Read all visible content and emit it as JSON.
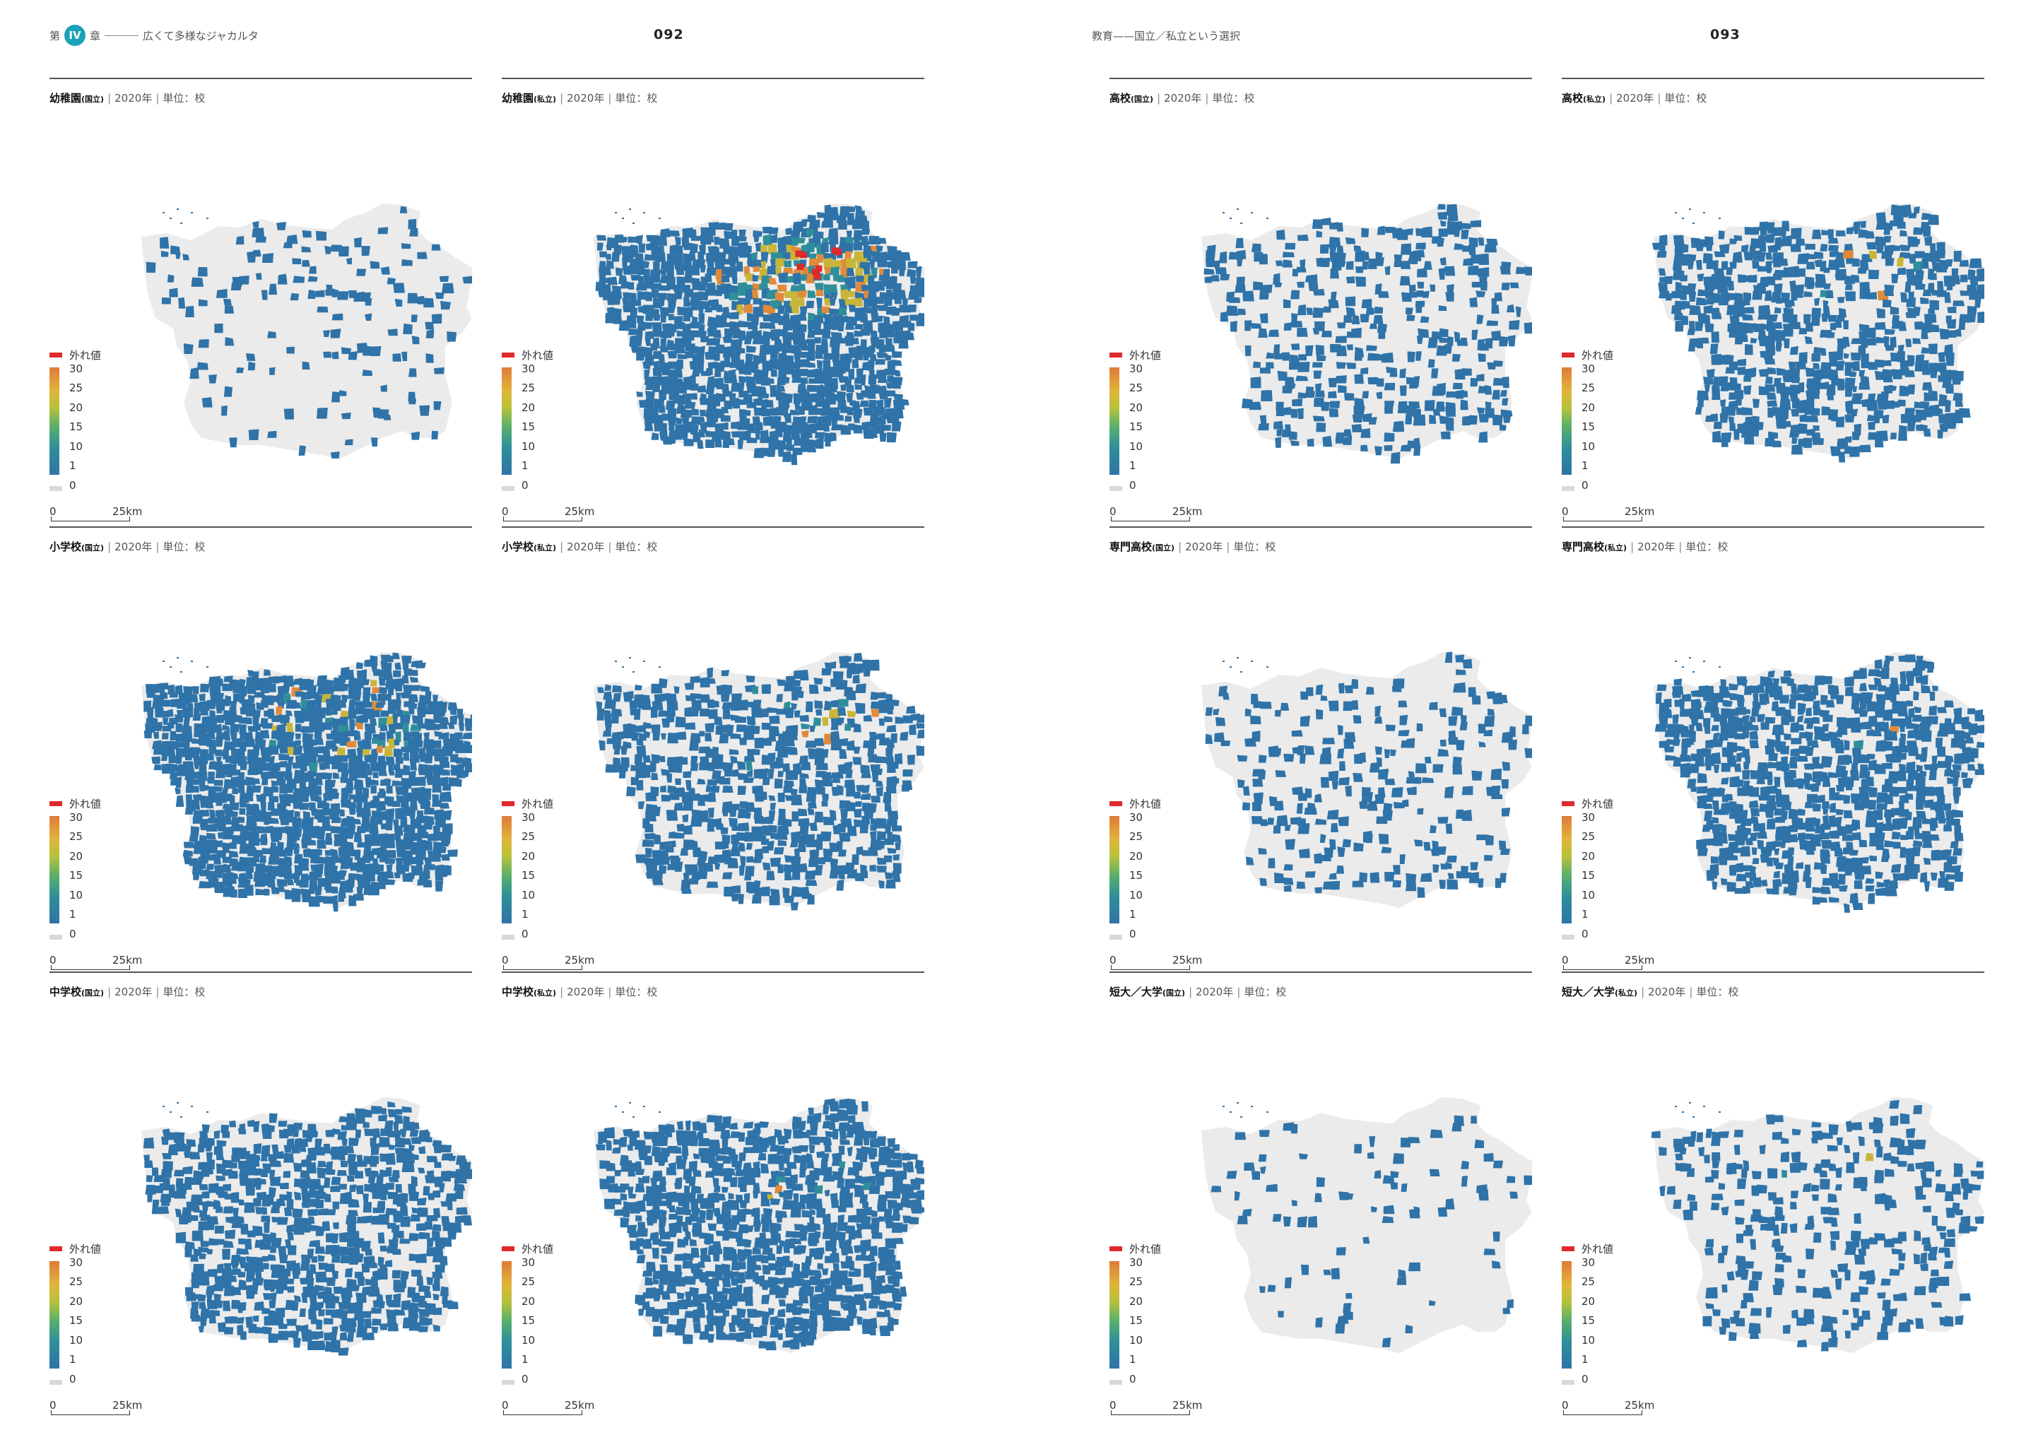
{
  "colors": {
    "land": "#ebebeb",
    "low": "#2f73a8",
    "mid": "#2e8f9a",
    "yellow": "#c9b53a",
    "orange": "#e08a3a",
    "outlier": "#e0292b",
    "zero": "#d9d9d9",
    "badge": "#1aa0b8"
  },
  "header_left": {
    "prefix": "第",
    "chapter": "IV",
    "suffix": "章",
    "title": "広くて多様なジャカルタ"
  },
  "header_right": {
    "title": "教育——国立／私立という選択"
  },
  "page_numbers": {
    "left": "092",
    "right": "093"
  },
  "legend": {
    "outlier_label": "外れ値",
    "ticks": [
      "30",
      "25",
      "20",
      "15",
      "10",
      "1",
      "0"
    ],
    "scale_zero": "0",
    "scale_label": "25km"
  },
  "maps": [
    {
      "title": "幼稚園",
      "type": "(国立)",
      "meta": "2020年",
      "unit": "単位：校",
      "intensity": 0.15,
      "hot": 0.0,
      "outliers": 0
    },
    {
      "title": "幼稚園",
      "type": "(私立)",
      "meta": "2020年",
      "unit": "単位：校",
      "intensity": 0.95,
      "hot": 0.35,
      "outliers": 8
    },
    {
      "title": "小学校",
      "type": "(国立)",
      "meta": "2020年",
      "unit": "単位：校",
      "intensity": 1.0,
      "hot": 0.08,
      "outliers": 0
    },
    {
      "title": "小学校",
      "type": "(私立)",
      "meta": "2020年",
      "unit": "単位：校",
      "intensity": 0.6,
      "hot": 0.08,
      "outliers": 0
    },
    {
      "title": "中学校",
      "type": "(国立)",
      "meta": "2020年",
      "unit": "単位：校",
      "intensity": 0.65,
      "hot": 0.0,
      "outliers": 0
    },
    {
      "title": "中学校",
      "type": "(私立)",
      "meta": "2020年",
      "unit": "単位：校",
      "intensity": 0.8,
      "hot": 0.04,
      "outliers": 0
    },
    {
      "title": "高校",
      "type": "(国立)",
      "meta": "2020年",
      "unit": "単位：校",
      "intensity": 0.35,
      "hot": 0.0,
      "outliers": 0
    },
    {
      "title": "高校",
      "type": "(私立)",
      "meta": "2020年",
      "unit": "単位：校",
      "intensity": 0.62,
      "hot": 0.02,
      "outliers": 0
    },
    {
      "title": "専門高校",
      "type": "(国立)",
      "meta": "2020年",
      "unit": "単位：校",
      "intensity": 0.22,
      "hot": 0.0,
      "outliers": 0
    },
    {
      "title": "専門高校",
      "type": "(私立)",
      "meta": "2020年",
      "unit": "単位：校",
      "intensity": 0.72,
      "hot": 0.01,
      "outliers": 0
    },
    {
      "title": "短大／大学",
      "type": "(国立)",
      "meta": "2020年",
      "unit": "単位：校",
      "intensity": 0.08,
      "hot": 0.0,
      "outliers": 0
    },
    {
      "title": "短大／大学",
      "type": "(私立)",
      "meta": "2020年",
      "unit": "単位：校",
      "intensity": 0.3,
      "hot": 0.02,
      "outliers": 0
    }
  ]
}
